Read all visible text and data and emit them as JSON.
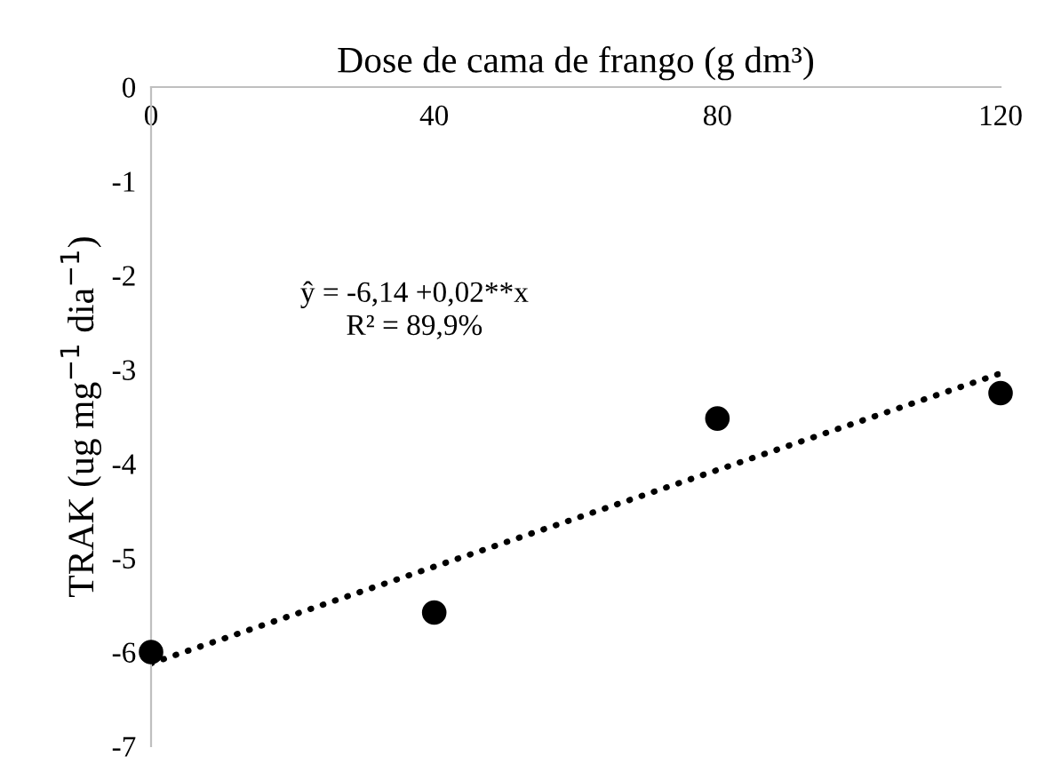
{
  "chart_data": {
    "type": "scatter",
    "xlabel": "Dose de cama de frango (g dm³)",
    "ylabel": "TRAK (ug mg$^{−1}$ dia$^{−1}$)",
    "x": [
      0,
      40,
      80,
      120
    ],
    "series": [
      {
        "color": "#000000",
        "marker": "circle",
        "values": [
          -6.0,
          -5.58,
          -3.52,
          -3.25
        ]
      },
      {
        "type": "line",
        "color": "#000000",
        "line_style": "dotted",
        "marker": "none",
        "x": [
          0,
          120
        ],
        "values": [
          -6.12,
          -3.04
        ]
      }
    ],
    "xlim": [
      0,
      120
    ],
    "xticks": [
      0,
      40,
      80,
      120
    ],
    "ylim": [
      -7,
      0
    ],
    "yticks": [
      -7,
      -6,
      -5,
      -4,
      -3,
      -2,
      -1,
      0
    ],
    "grid": false,
    "legend": false,
    "annotations": [
      "ŷ = -6,14 +0,02**x",
      "R² = 89,9%"
    ]
  }
}
